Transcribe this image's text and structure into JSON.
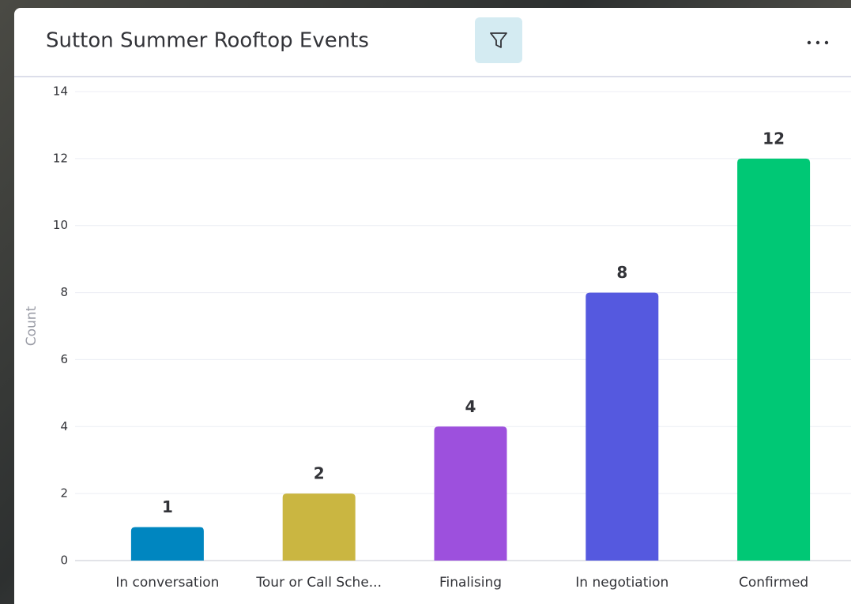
{
  "chart_data": {
    "type": "bar",
    "title": "Sutton Summer Rooftop Events",
    "y_label": "Count",
    "categories": [
      "In conversation",
      "Tour or Call Sche...",
      "Finalising",
      "In negotiation",
      "Confirmed"
    ],
    "values": [
      1,
      2,
      4,
      8,
      12
    ],
    "colors": [
      "#0086c0",
      "#cab641",
      "#9d50dd",
      "#5559df",
      "#00c875"
    ],
    "ylim": [
      0,
      14
    ],
    "yticks": [
      0,
      2,
      4,
      6,
      8,
      10,
      12,
      14
    ],
    "grid": true
  }
}
